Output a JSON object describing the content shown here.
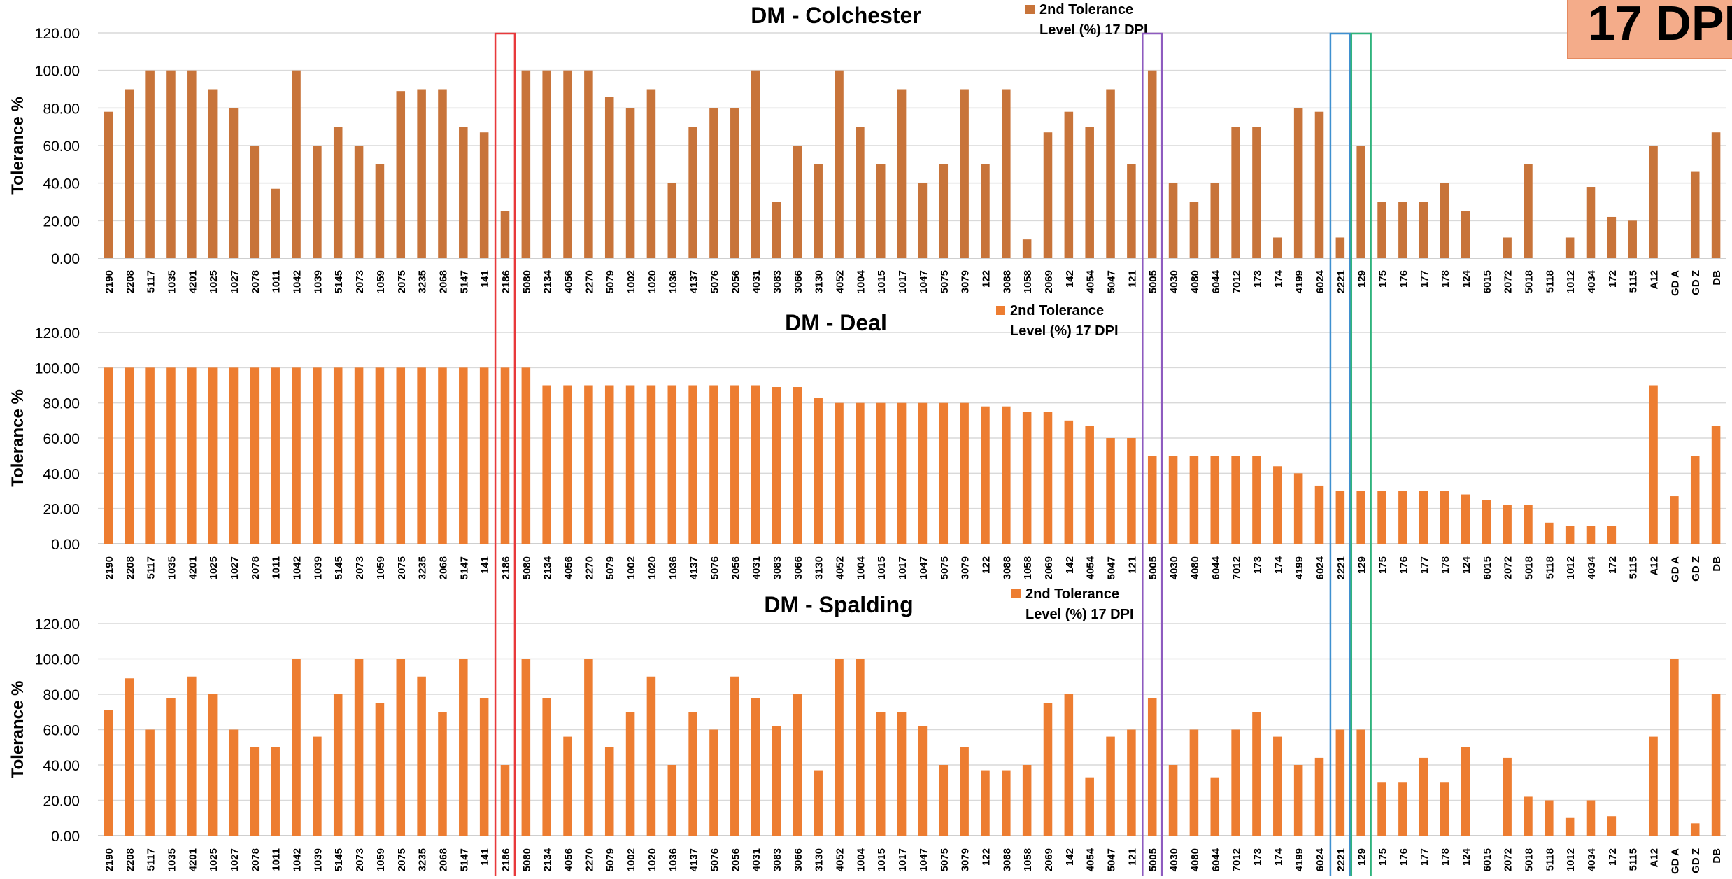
{
  "badge": "17 DPI",
  "highlight_colors": [
    "#e8393b",
    "#8e5bbf",
    "#3f90d0",
    "#2fb37c"
  ],
  "highlight_categories": [
    "2186",
    "5005",
    "2221",
    "129"
  ],
  "chart_data": [
    {
      "type": "bar",
      "title": "DM - Colchester",
      "ylabel": "Tolerance %",
      "legend": "2nd Tolerance Level (%) 17 DPI",
      "legend_position": "top",
      "color": "#c8743a",
      "ylim": [
        0,
        120
      ],
      "yticks": [
        "0.00",
        "20.00",
        "40.00",
        "60.00",
        "80.00",
        "100.00",
        "120.00"
      ],
      "grid": true,
      "categories": [
        "2190",
        "2208",
        "5117",
        "1035",
        "4201",
        "1025",
        "1027",
        "2078",
        "1011",
        "1042",
        "1039",
        "5145",
        "2073",
        "1059",
        "2075",
        "3235",
        "2068",
        "5147",
        "141",
        "2186",
        "5080",
        "2134",
        "4056",
        "2270",
        "5079",
        "1002",
        "1020",
        "1036",
        "4137",
        "5076",
        "2056",
        "4031",
        "3083",
        "3066",
        "3130",
        "4052",
        "1004",
        "1015",
        "1017",
        "1047",
        "5075",
        "3079",
        "122",
        "3088",
        "1058",
        "2069",
        "142",
        "4054",
        "5047",
        "121",
        "5005",
        "4030",
        "4080",
        "6044",
        "7012",
        "173",
        "174",
        "4199",
        "6024",
        "2221",
        "129",
        "175",
        "176",
        "177",
        "178",
        "124",
        "6015",
        "2072",
        "5018",
        "5118",
        "1012",
        "4034",
        "172",
        "5115",
        "A12",
        "GD A",
        "GD Z",
        "DB"
      ],
      "values": [
        78,
        90,
        100,
        100,
        100,
        90,
        80,
        60,
        37,
        100,
        60,
        70,
        60,
        50,
        89,
        90,
        90,
        70,
        67,
        25,
        100,
        100,
        100,
        100,
        86,
        80,
        90,
        40,
        70,
        80,
        80,
        100,
        30,
        60,
        50,
        100,
        70,
        50,
        90,
        40,
        50,
        90,
        50,
        90,
        10,
        67,
        78,
        70,
        90,
        50,
        100,
        40,
        30,
        40,
        70,
        70,
        11,
        80,
        78,
        11,
        60,
        30,
        30,
        30,
        40,
        25,
        0,
        11,
        50,
        0,
        11,
        38,
        22,
        20,
        60,
        0,
        46,
        67
      ]
    },
    {
      "type": "bar",
      "title": "DM - Deal",
      "ylabel": "Tolerance %",
      "legend": "2nd Tolerance Level (%) 17 DPI",
      "legend_position": "top",
      "color": "#ed7d31",
      "ylim": [
        0,
        120
      ],
      "yticks": [
        "0.00",
        "20.00",
        "40.00",
        "60.00",
        "80.00",
        "100.00",
        "120.00"
      ],
      "grid": true,
      "categories": [
        "2190",
        "2208",
        "5117",
        "1035",
        "4201",
        "1025",
        "1027",
        "2078",
        "1011",
        "1042",
        "1039",
        "5145",
        "2073",
        "1059",
        "2075",
        "3235",
        "2068",
        "5147",
        "141",
        "2186",
        "5080",
        "2134",
        "4056",
        "2270",
        "5079",
        "1002",
        "1020",
        "1036",
        "4137",
        "5076",
        "2056",
        "4031",
        "3083",
        "3066",
        "3130",
        "4052",
        "1004",
        "1015",
        "1017",
        "1047",
        "5075",
        "3079",
        "122",
        "3088",
        "1058",
        "2069",
        "142",
        "4054",
        "5047",
        "121",
        "5005",
        "4030",
        "4080",
        "6044",
        "7012",
        "173",
        "174",
        "4199",
        "6024",
        "2221",
        "129",
        "175",
        "176",
        "177",
        "178",
        "124",
        "6015",
        "2072",
        "5018",
        "5118",
        "1012",
        "4034",
        "172",
        "5115",
        "A12",
        "GD A",
        "GD Z",
        "DB"
      ],
      "values": [
        100,
        100,
        100,
        100,
        100,
        100,
        100,
        100,
        100,
        100,
        100,
        100,
        100,
        100,
        100,
        100,
        100,
        100,
        100,
        100,
        100,
        90,
        90,
        90,
        90,
        90,
        90,
        90,
        90,
        90,
        90,
        90,
        89,
        89,
        83,
        80,
        80,
        80,
        80,
        80,
        80,
        80,
        78,
        78,
        75,
        75,
        70,
        67,
        60,
        60,
        50,
        50,
        50,
        50,
        50,
        50,
        44,
        40,
        33,
        30,
        30,
        30,
        30,
        30,
        30,
        28,
        25,
        22,
        22,
        12,
        10,
        10,
        10,
        0,
        90,
        27,
        50,
        67
      ]
    },
    {
      "type": "bar",
      "title": "DM - Spalding",
      "ylabel": "Tolerance %",
      "legend": "2nd Tolerance Level (%)  17 DPI",
      "legend_position": "top",
      "color": "#ed7d31",
      "ylim": [
        0,
        120
      ],
      "yticks": [
        "0.00",
        "20.00",
        "40.00",
        "60.00",
        "80.00",
        "100.00",
        "120.00"
      ],
      "grid": true,
      "categories": [
        "2190",
        "2208",
        "5117",
        "1035",
        "4201",
        "1025",
        "1027",
        "2078",
        "1011",
        "1042",
        "1039",
        "5145",
        "2073",
        "1059",
        "2075",
        "3235",
        "2068",
        "5147",
        "141",
        "2186",
        "5080",
        "2134",
        "4056",
        "2270",
        "5079",
        "1002",
        "1020",
        "1036",
        "4137",
        "5076",
        "2056",
        "4031",
        "3083",
        "3066",
        "3130",
        "4052",
        "1004",
        "1015",
        "1017",
        "1047",
        "5075",
        "3079",
        "122",
        "3088",
        "1058",
        "2069",
        "142",
        "4054",
        "5047",
        "121",
        "5005",
        "4030",
        "4080",
        "6044",
        "7012",
        "173",
        "174",
        "4199",
        "6024",
        "2221",
        "129",
        "175",
        "176",
        "177",
        "178",
        "124",
        "6015",
        "2072",
        "5018",
        "5118",
        "1012",
        "4034",
        "172",
        "5115",
        "A12",
        "GD A",
        "GD Z",
        "DB"
      ],
      "values": [
        71,
        89,
        60,
        78,
        90,
        80,
        60,
        50,
        50,
        100,
        56,
        80,
        100,
        75,
        100,
        90,
        70,
        100,
        78,
        40,
        100,
        78,
        56,
        100,
        50,
        70,
        90,
        40,
        70,
        60,
        90,
        78,
        62,
        80,
        37,
        100,
        100,
        70,
        70,
        62,
        40,
        50,
        37,
        37,
        40,
        75,
        80,
        33,
        56,
        60,
        78,
        40,
        60,
        33,
        60,
        70,
        56,
        40,
        44,
        60,
        60,
        30,
        30,
        44,
        30,
        50,
        0,
        44,
        22,
        20,
        10,
        20,
        11,
        0,
        56,
        100,
        7,
        80
      ]
    }
  ]
}
